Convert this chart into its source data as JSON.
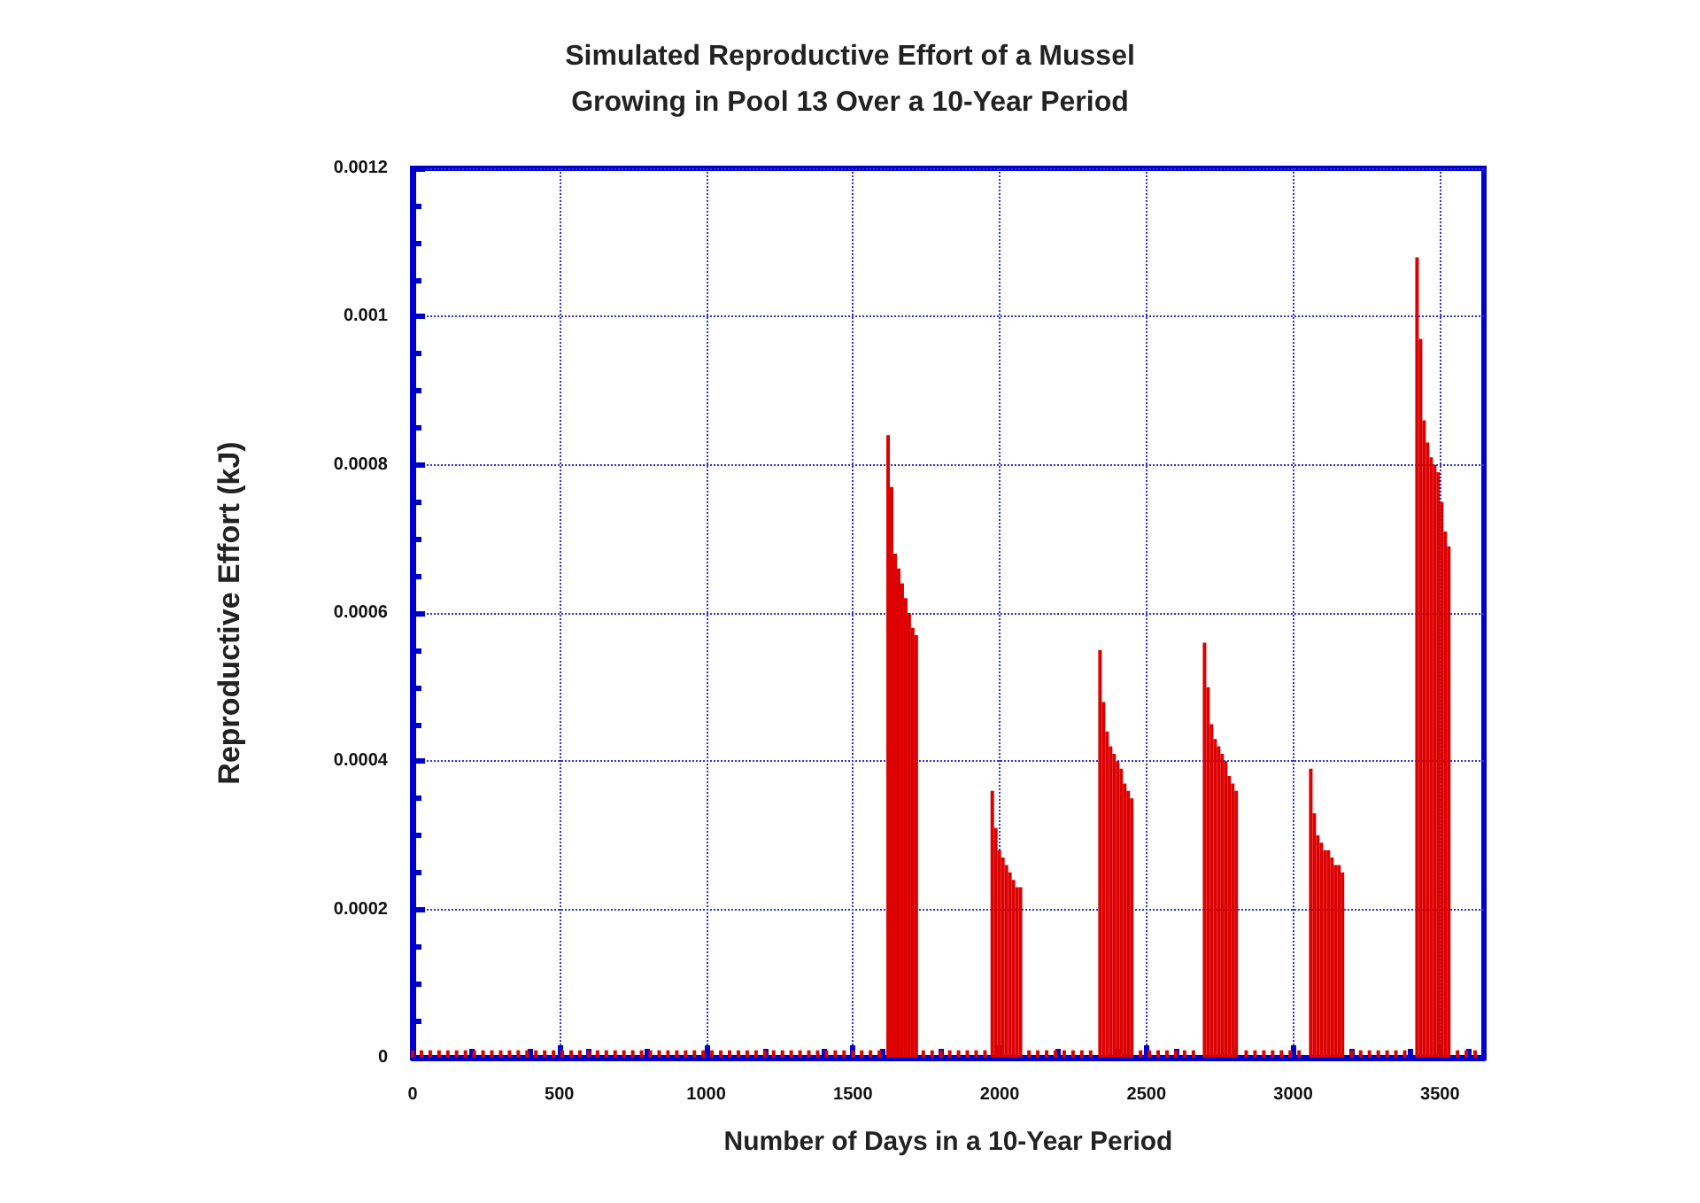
{
  "chart_data": {
    "type": "bar",
    "title": "Simulated Reproductive Effort of a Mussel\nGrowing in Pool 13 Over a 10-Year Period",
    "xlabel": "Number of Days in a 10-Year Period",
    "ylabel": "Reproductive Effort (kJ)",
    "xlim": [
      0,
      3650
    ],
    "xticks": [
      0,
      500,
      1000,
      1500,
      2000,
      2500,
      3000,
      3500
    ],
    "ylim": [
      0,
      0.0012
    ],
    "yticks": [
      0,
      0.0002,
      0.0004,
      0.0006,
      0.0008,
      0.001,
      0.0012
    ],
    "grid": true,
    "series": [
      {
        "color": "#dd0000",
        "x": [
          0,
          30,
          60,
          90,
          120,
          150,
          180,
          210,
          240,
          270,
          300,
          330,
          360,
          390,
          420,
          450,
          480,
          510,
          540,
          570,
          600,
          630,
          660,
          690,
          720,
          750,
          780,
          810,
          840,
          870,
          900,
          930,
          960,
          990,
          1020,
          1050,
          1080,
          1110,
          1140,
          1170,
          1200,
          1230,
          1260,
          1290,
          1320,
          1350,
          1380,
          1410,
          1440,
          1470,
          1500,
          1530,
          1560,
          1590,
          1620,
          1632,
          1644,
          1656,
          1668,
          1680,
          1692,
          1704,
          1716,
          1740,
          1770,
          1800,
          1830,
          1860,
          1890,
          1920,
          1950,
          1975,
          1987,
          1999,
          2011,
          2023,
          2035,
          2047,
          2059,
          2071,
          2100,
          2130,
          2160,
          2190,
          2220,
          2250,
          2280,
          2310,
          2342,
          2354,
          2366,
          2378,
          2390,
          2402,
          2414,
          2426,
          2438,
          2450,
          2480,
          2510,
          2540,
          2570,
          2600,
          2630,
          2660,
          2698,
          2710,
          2722,
          2734,
          2746,
          2758,
          2770,
          2782,
          2794,
          2806,
          2840,
          2870,
          2900,
          2930,
          2960,
          2990,
          3020,
          3060,
          3072,
          3084,
          3096,
          3108,
          3120,
          3132,
          3144,
          3156,
          3168,
          3200,
          3230,
          3260,
          3290,
          3320,
          3350,
          3380,
          3422,
          3434,
          3446,
          3458,
          3470,
          3482,
          3494,
          3506,
          3518,
          3530,
          3560,
          3590,
          3620
        ],
        "values": [
          1e-05,
          1e-05,
          1e-05,
          1e-05,
          1e-05,
          1e-05,
          1e-05,
          1e-05,
          1e-05,
          1e-05,
          1e-05,
          1e-05,
          1e-05,
          1e-05,
          1e-05,
          1e-05,
          1e-05,
          1e-05,
          1e-05,
          1e-05,
          1e-05,
          1e-05,
          1e-05,
          1e-05,
          1e-05,
          1e-05,
          1e-05,
          1e-05,
          1e-05,
          1e-05,
          1e-05,
          1e-05,
          1e-05,
          1e-05,
          1e-05,
          1e-05,
          1e-05,
          1e-05,
          1e-05,
          1e-05,
          1e-05,
          1e-05,
          1e-05,
          1e-05,
          1e-05,
          1e-05,
          1e-05,
          1e-05,
          1e-05,
          1e-05,
          1e-05,
          1e-05,
          1e-05,
          1e-05,
          0.00084,
          0.00077,
          0.00068,
          0.00066,
          0.00064,
          0.00062,
          0.0006,
          0.00058,
          0.00057,
          1e-05,
          1e-05,
          1e-05,
          1e-05,
          1e-05,
          1e-05,
          1e-05,
          1e-05,
          0.00036,
          0.00031,
          0.00028,
          0.00027,
          0.00026,
          0.00025,
          0.00024,
          0.00023,
          0.00023,
          1e-05,
          1e-05,
          1e-05,
          1e-05,
          1e-05,
          1e-05,
          1e-05,
          1e-05,
          0.00055,
          0.00048,
          0.00044,
          0.00042,
          0.00041,
          0.0004,
          0.00039,
          0.00037,
          0.00036,
          0.00035,
          1e-05,
          1e-05,
          1e-05,
          1e-05,
          1e-05,
          1e-05,
          1e-05,
          0.00056,
          0.0005,
          0.00045,
          0.00043,
          0.00042,
          0.00041,
          0.0004,
          0.00038,
          0.00037,
          0.00036,
          1e-05,
          1e-05,
          1e-05,
          1e-05,
          1e-05,
          1e-05,
          1e-05,
          0.00039,
          0.00033,
          0.0003,
          0.00029,
          0.00028,
          0.00028,
          0.00027,
          0.00026,
          0.00026,
          0.00025,
          1e-05,
          1e-05,
          1e-05,
          1e-05,
          1e-05,
          1e-05,
          1e-05,
          0.00108,
          0.00097,
          0.00086,
          0.00083,
          0.00081,
          0.0008,
          0.00079,
          0.00075,
          0.00071,
          0.00069,
          1e-05,
          1e-05,
          1e-05
        ]
      }
    ]
  }
}
